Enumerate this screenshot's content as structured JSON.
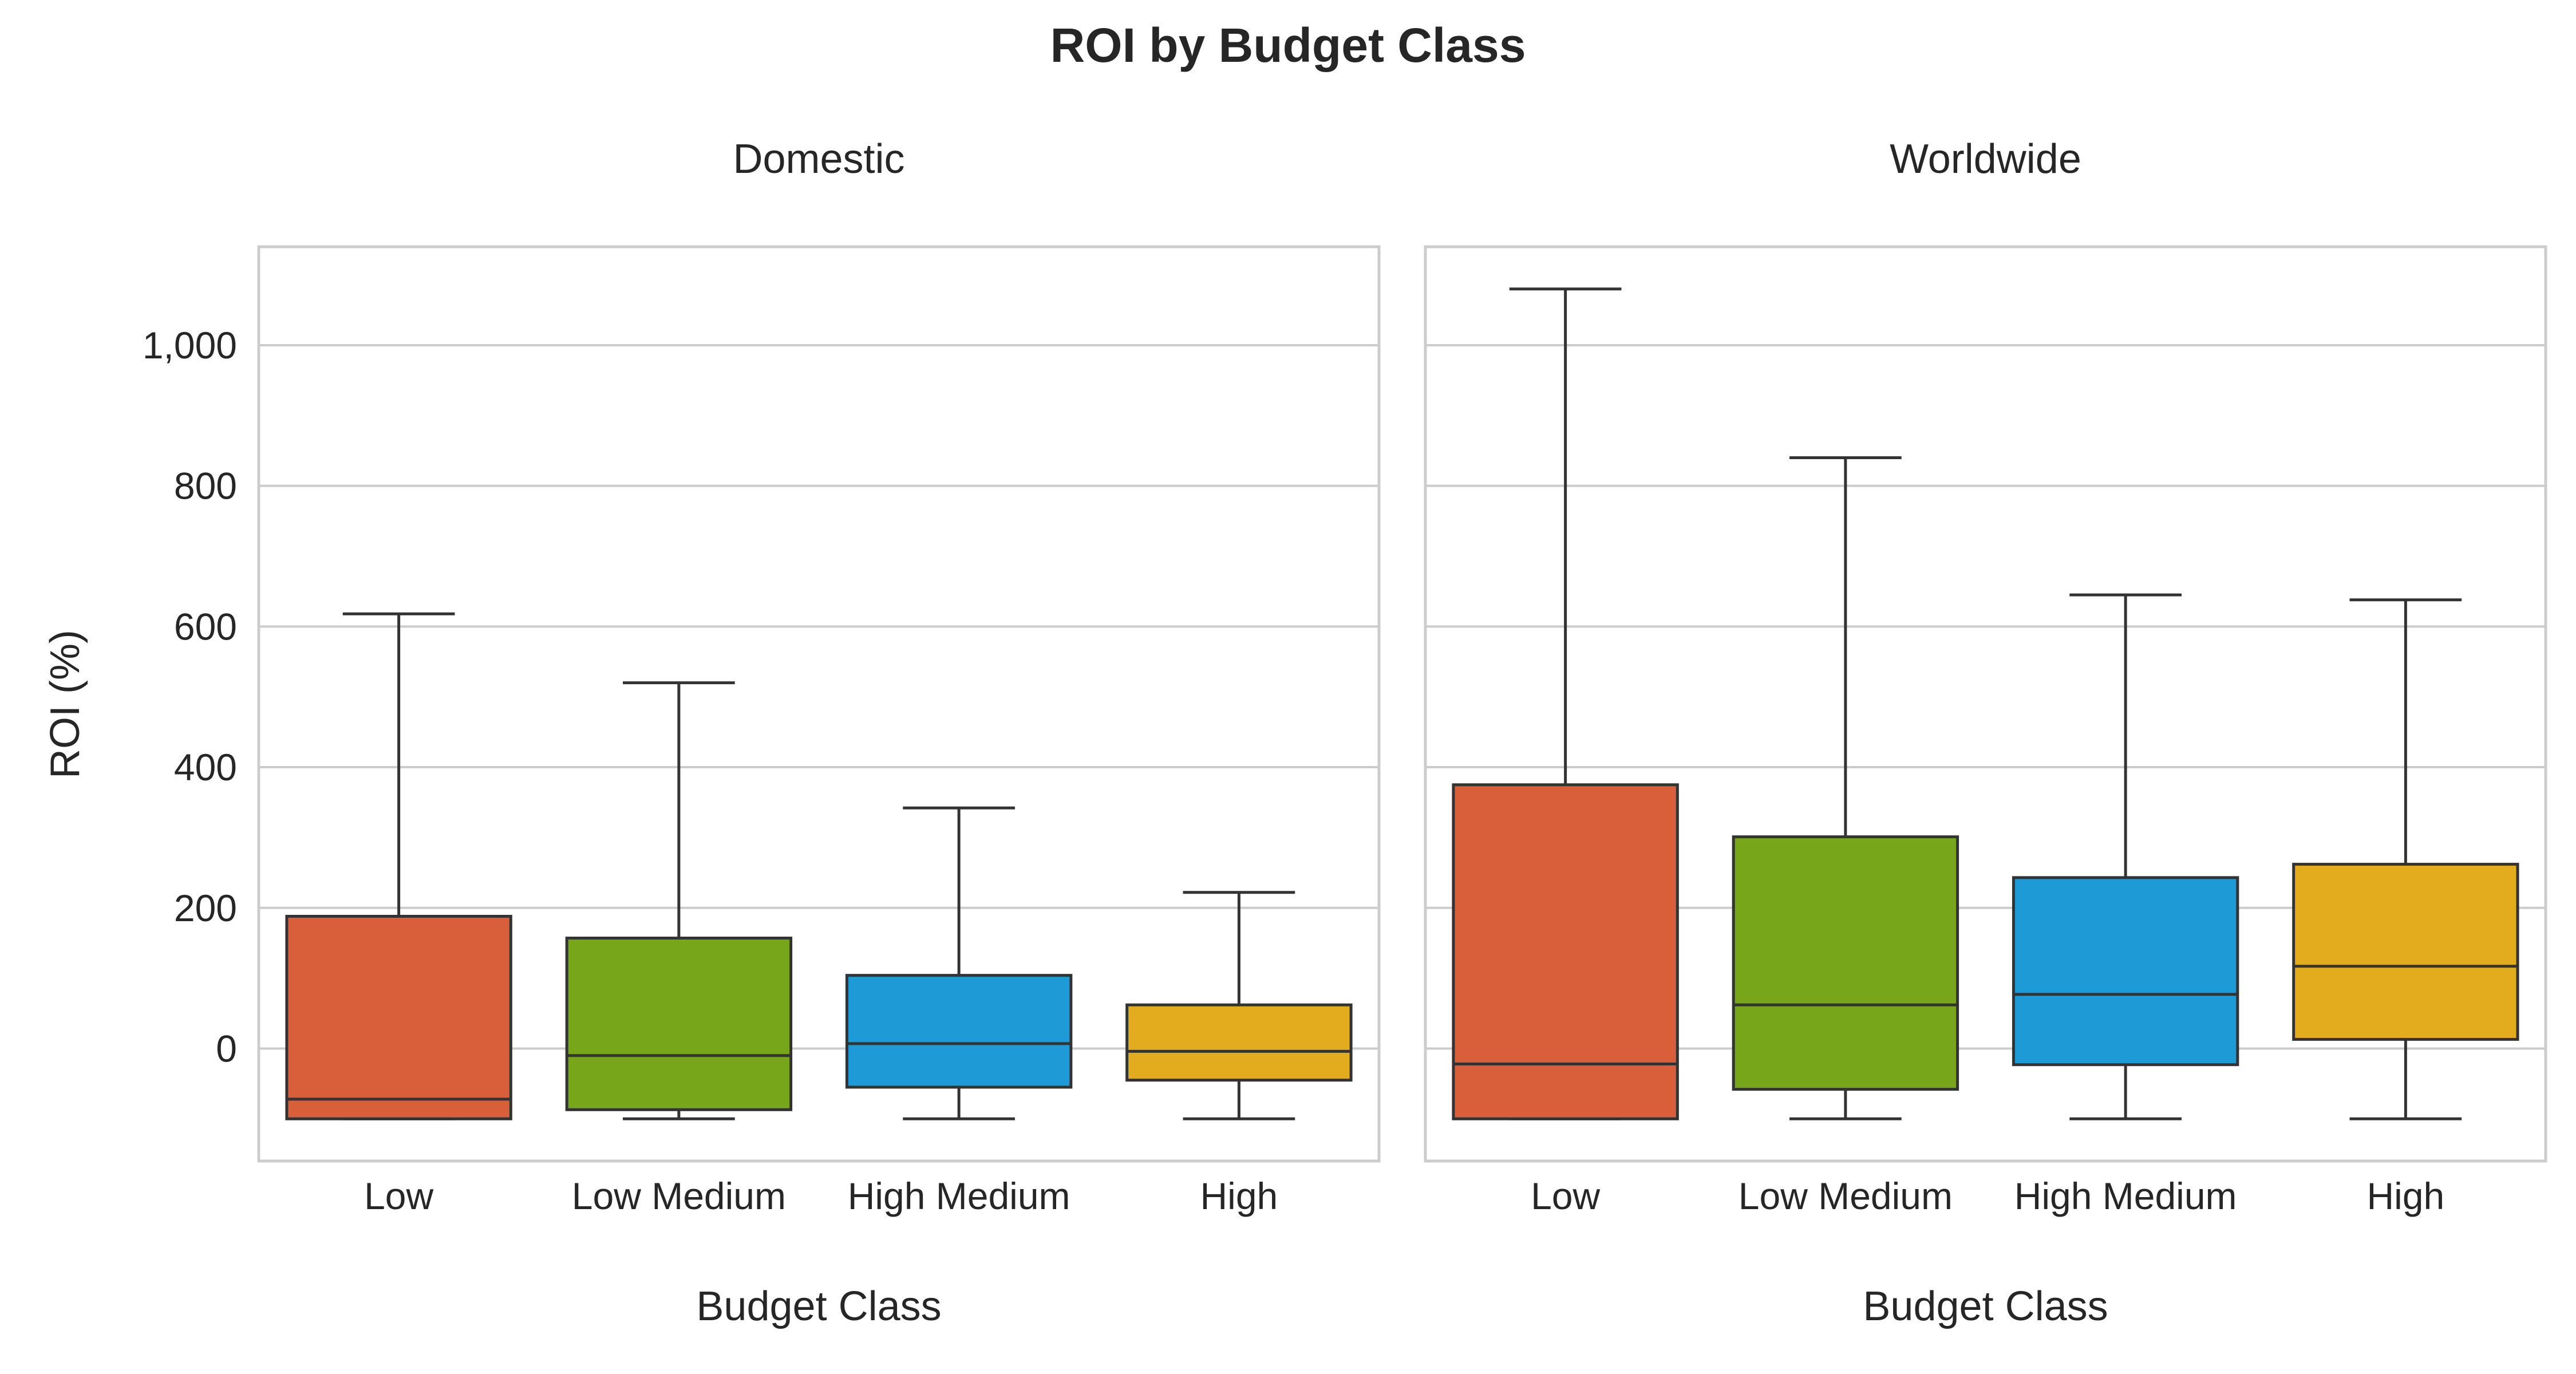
{
  "chart_data": {
    "type": "box",
    "title": "ROI by Budget Class",
    "ylabel": "ROI (%)",
    "ylim": [
      -160,
      1140
    ],
    "yticks": [
      0,
      200,
      400,
      600,
      800,
      1000
    ],
    "ytick_labels": [
      "0",
      "200",
      "400",
      "600",
      "800",
      "1,000"
    ],
    "grid": true,
    "categories": [
      "Low",
      "Low Medium",
      "High Medium",
      "High"
    ],
    "colors": [
      "#D95F3B",
      "#77A61A",
      "#1E9BD7",
      "#E3AC1F"
    ],
    "panels": [
      {
        "subtitle": "Domestic",
        "xlabel": "Budget Class",
        "boxes": [
          {
            "category": "Low",
            "whisker_low": -100,
            "q1": -100,
            "median": -72,
            "q3": 188,
            "whisker_high": 618
          },
          {
            "category": "Low Medium",
            "whisker_low": -100,
            "q1": -87,
            "median": -10,
            "q3": 157,
            "whisker_high": 520
          },
          {
            "category": "High Medium",
            "whisker_low": -100,
            "q1": -55,
            "median": 7,
            "q3": 104,
            "whisker_high": 342
          },
          {
            "category": "High",
            "whisker_low": -100,
            "q1": -45,
            "median": -4,
            "q3": 62,
            "whisker_high": 222
          }
        ]
      },
      {
        "subtitle": "Worldwide",
        "xlabel": "Budget Class",
        "boxes": [
          {
            "category": "Low",
            "whisker_low": -100,
            "q1": -100,
            "median": -22,
            "q3": 375,
            "whisker_high": 1080
          },
          {
            "category": "Low Medium",
            "whisker_low": -100,
            "q1": -58,
            "median": 62,
            "q3": 301,
            "whisker_high": 840
          },
          {
            "category": "High Medium",
            "whisker_low": -100,
            "q1": -23,
            "median": 77,
            "q3": 243,
            "whisker_high": 645
          },
          {
            "category": "High",
            "whisker_low": -100,
            "q1": 13,
            "median": 117,
            "q3": 262,
            "whisker_high": 638
          }
        ]
      }
    ]
  }
}
